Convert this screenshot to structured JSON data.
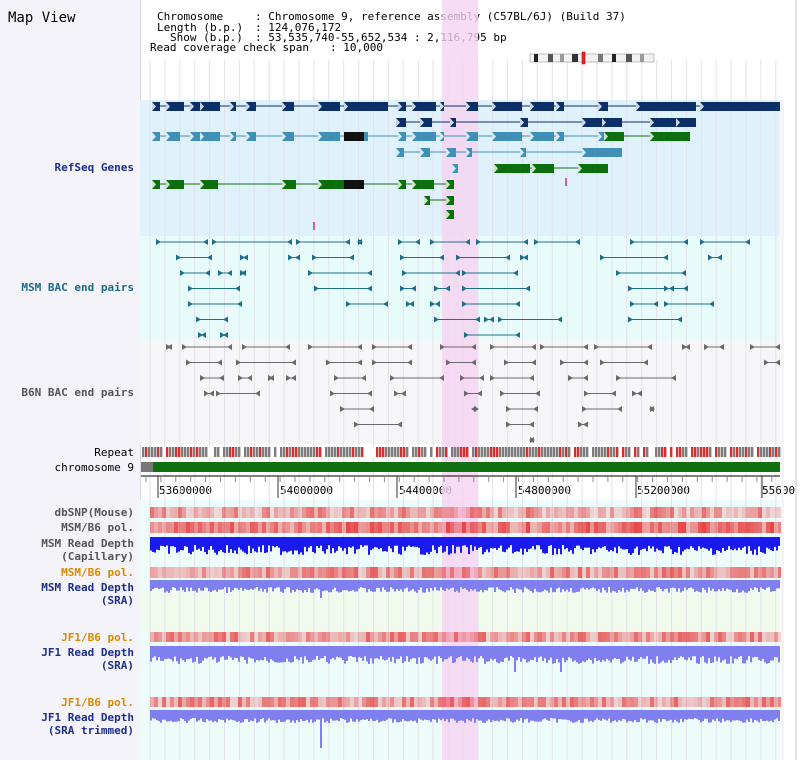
{
  "page": {
    "title": "Map View"
  },
  "info": {
    "chromosome_label": "Chromosome",
    "chromosome_value": ": Chromosome 9, reference assembly (C57BL/6J) (Build 37)",
    "length_label": "Length (b.p.)",
    "length_value": ": 124,076,172",
    "show_label": "Show (b.p.)",
    "show_value": ": 53,535,740-55,652,534 : 2,116,795 bp",
    "coverage_label": "Read coverage check span",
    "coverage_value": ": 10,000"
  },
  "tracks": {
    "refseq": "RefSeq Genes",
    "msm_bac": "MSM BAC end pairs",
    "b6n_bac": "B6N BAC end pairs",
    "repeat": "Repeat",
    "chromosome": "chromosome 9",
    "dbsnp": "dbSNP(Mouse)",
    "msm_b6_pol": "MSM/B6 pol.",
    "msm_depth_cap_1": "MSM Read Depth",
    "msm_depth_cap_2": "(Capillary)",
    "msm_b6_pol_2": "MSM/B6 pol.",
    "msm_depth_sra_1": "MSM Read Depth",
    "msm_depth_sra_2": "(SRA)",
    "jf1_b6_pol": "JF1/B6 pol.",
    "jf1_depth_sra_1": "JF1 Read Depth",
    "jf1_depth_sra_2": "(SRA)",
    "jf1_b6_pol_2": "JF1/B6 pol.",
    "jf1_depth_trim_1": "JF1 Read Depth",
    "jf1_depth_trim_2": "(SRA trimmed)"
  },
  "axis": {
    "ticks": [
      "53600000",
      "54000000",
      "54400000",
      "54800000",
      "55200000",
      "55600"
    ]
  },
  "colors": {
    "refseq_bg": "#dff1fb",
    "msm_bg": "#e8fbfb",
    "b6n_bg": "#f6f6f8",
    "highlight": "#f6d3f3",
    "gene_navy": "#0b2f66",
    "gene_blue": "#3f8fb6",
    "gene_green": "#0d6e0d",
    "bac_teal": "#1f6f8b",
    "bac_gray": "#6a6a6a",
    "depth_blue": "#1a1aee",
    "depth_lavender": "#7f7ff0"
  }
}
